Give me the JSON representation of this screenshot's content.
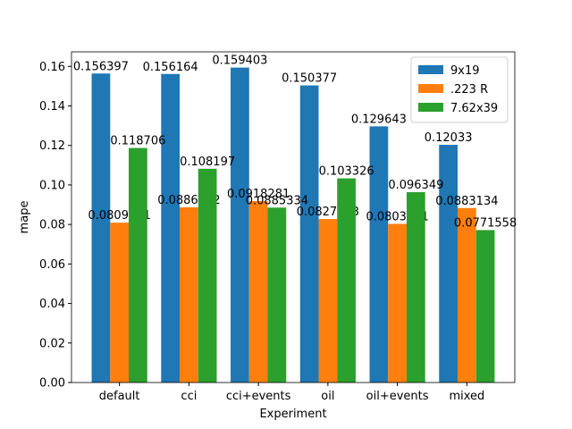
{
  "chart_data": {
    "type": "bar",
    "xlabel": "Experiment",
    "ylabel": "mape",
    "categories": [
      "default",
      "cci",
      "cci+events",
      "oil",
      "oil+events",
      "mixed"
    ],
    "series": [
      {
        "name": "9x19",
        "color": "#1f77b4",
        "values": [
          0.156397,
          0.156164,
          0.159403,
          0.150377,
          0.129643,
          0.12033
        ]
      },
      {
        "name": ".223 R",
        "color": "#ff7f0e",
        "values": [
          0.0809061,
          0.0886662,
          0.0918281,
          0.0827603,
          0.0803101,
          0.0883134
        ]
      },
      {
        "name": "7.62x39",
        "color": "#2ca02c",
        "values": [
          0.118706,
          0.108197,
          0.0885334,
          0.103326,
          0.096349,
          0.0771558
        ]
      }
    ],
    "ylim": [
      0,
      0.16737
    ],
    "yticks": [
      {
        "value": 0,
        "label": "0.00"
      },
      {
        "value": 0.02,
        "label": "0.02"
      },
      {
        "value": 0.04,
        "label": "0.04"
      },
      {
        "value": 0.06,
        "label": "0.06"
      },
      {
        "value": 0.08,
        "label": "0.08"
      },
      {
        "value": 0.1,
        "label": "0.10"
      },
      {
        "value": 0.12,
        "label": "0.12"
      },
      {
        "value": 0.14,
        "label": "0.14"
      },
      {
        "value": 0.16,
        "label": "0.16"
      }
    ],
    "legend": "upper right"
  }
}
